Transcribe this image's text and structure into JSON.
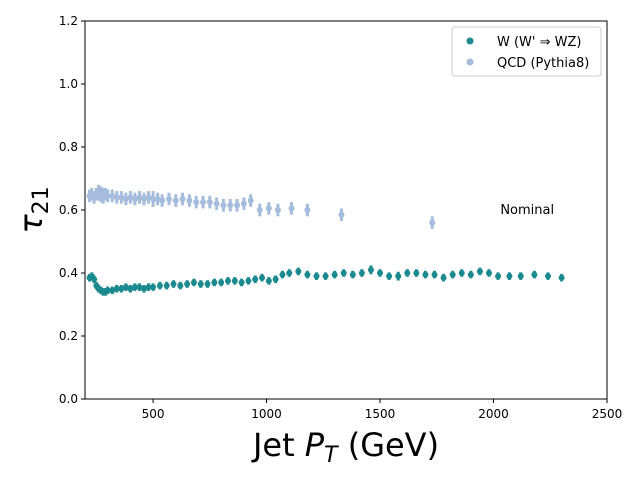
{
  "chart_data": {
    "type": "scatter",
    "x_label": {
      "prefix": "Jet ",
      "symbol": "P",
      "subscript": "T",
      "suffix": " (GeV)"
    },
    "y_label": {
      "symbol": "τ",
      "subscript": "21"
    },
    "annotations": [
      {
        "text": "Nominal",
        "x": 2030,
        "y": 0.6
      }
    ],
    "legend": "upper right",
    "xlim": [
      200,
      2500
    ],
    "ylim": [
      0,
      1.2
    ],
    "xticks": [
      500,
      1000,
      1500,
      2000,
      2500
    ],
    "yticks": [
      {
        "value": 0,
        "label": "0.0"
      },
      {
        "value": 0.2,
        "label": "0.2"
      },
      {
        "value": 0.4,
        "label": "0.4"
      },
      {
        "value": 0.6,
        "label": "0.6"
      },
      {
        "value": 0.8,
        "label": "0.8"
      },
      {
        "value": 1.0,
        "label": "1.0"
      },
      {
        "value": 1.2,
        "label": "1.2"
      }
    ],
    "series": [
      {
        "name": "W (W' ⇒ WZ)",
        "color": "#1b8a8f",
        "x": [
          220,
          230,
          240,
          250,
          260,
          270,
          280,
          290,
          300,
          320,
          340,
          360,
          380,
          400,
          420,
          440,
          460,
          480,
          500,
          530,
          560,
          590,
          620,
          650,
          680,
          710,
          740,
          770,
          800,
          830,
          860,
          890,
          920,
          950,
          980,
          1010,
          1040,
          1070,
          1100,
          1140,
          1180,
          1220,
          1260,
          1300,
          1340,
          1380,
          1420,
          1460,
          1500,
          1540,
          1580,
          1620,
          1660,
          1700,
          1740,
          1780,
          1820,
          1860,
          1900,
          1940,
          1980,
          2020,
          2070,
          2120,
          2180,
          2240,
          2300
        ],
        "values": [
          0.385,
          0.39,
          0.38,
          0.36,
          0.35,
          0.345,
          0.34,
          0.34,
          0.345,
          0.345,
          0.35,
          0.35,
          0.355,
          0.35,
          0.355,
          0.355,
          0.35,
          0.355,
          0.355,
          0.36,
          0.36,
          0.365,
          0.36,
          0.365,
          0.37,
          0.365,
          0.365,
          0.37,
          0.37,
          0.375,
          0.375,
          0.37,
          0.375,
          0.38,
          0.385,
          0.375,
          0.38,
          0.395,
          0.4,
          0.405,
          0.395,
          0.39,
          0.39,
          0.395,
          0.4,
          0.395,
          0.4,
          0.41,
          0.4,
          0.39,
          0.39,
          0.4,
          0.4,
          0.395,
          0.395,
          0.385,
          0.395,
          0.4,
          0.395,
          0.405,
          0.4,
          0.39,
          0.39,
          0.39,
          0.395,
          0.39,
          0.385
        ],
        "errors": [
          0.012,
          0.012,
          0.012,
          0.012,
          0.012,
          0.012,
          0.012,
          0.012,
          0.012,
          0.012,
          0.012,
          0.012,
          0.012,
          0.012,
          0.012,
          0.012,
          0.012,
          0.012,
          0.012,
          0.012,
          0.012,
          0.012,
          0.012,
          0.012,
          0.012,
          0.012,
          0.012,
          0.012,
          0.012,
          0.012,
          0.012,
          0.012,
          0.012,
          0.012,
          0.012,
          0.012,
          0.012,
          0.012,
          0.012,
          0.012,
          0.012,
          0.012,
          0.012,
          0.012,
          0.012,
          0.012,
          0.012,
          0.014,
          0.012,
          0.012,
          0.014,
          0.012,
          0.012,
          0.012,
          0.012,
          0.012,
          0.012,
          0.012,
          0.012,
          0.012,
          0.012,
          0.012,
          0.012,
          0.012,
          0.012,
          0.012,
          0.012
        ]
      },
      {
        "name": "QCD (Pythia8)",
        "color": "#a5bcdc",
        "x": [
          220,
          230,
          240,
          250,
          260,
          270,
          280,
          290,
          300,
          320,
          340,
          360,
          380,
          400,
          420,
          440,
          460,
          480,
          500,
          520,
          540,
          570,
          600,
          630,
          660,
          690,
          720,
          750,
          780,
          810,
          840,
          870,
          900,
          930,
          970,
          1010,
          1050,
          1110,
          1180,
          1330,
          1730
        ],
        "values": [
          0.645,
          0.65,
          0.64,
          0.65,
          0.655,
          0.65,
          0.645,
          0.65,
          0.645,
          0.645,
          0.64,
          0.64,
          0.635,
          0.64,
          0.635,
          0.64,
          0.635,
          0.64,
          0.635,
          0.635,
          0.63,
          0.635,
          0.63,
          0.635,
          0.63,
          0.625,
          0.625,
          0.625,
          0.62,
          0.615,
          0.615,
          0.615,
          0.62,
          0.63,
          0.6,
          0.605,
          0.6,
          0.605,
          0.6,
          0.585,
          0.56
        ],
        "errors": [
          0.02,
          0.02,
          0.02,
          0.02,
          0.025,
          0.025,
          0.025,
          0.02,
          0.02,
          0.02,
          0.02,
          0.02,
          0.02,
          0.02,
          0.02,
          0.02,
          0.02,
          0.02,
          0.025,
          0.02,
          0.02,
          0.02,
          0.02,
          0.02,
          0.02,
          0.02,
          0.02,
          0.02,
          0.02,
          0.02,
          0.02,
          0.02,
          0.02,
          0.02,
          0.02,
          0.02,
          0.02,
          0.02,
          0.02,
          0.02,
          0.02
        ]
      }
    ]
  }
}
